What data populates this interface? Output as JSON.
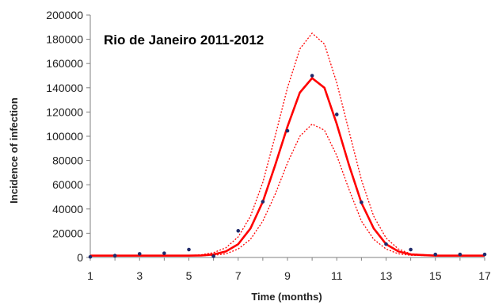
{
  "chart_data": {
    "type": "line",
    "title": "Rio de Janeiro 2011-2012",
    "xlabel": "Time (months)",
    "ylabel": "Incidence of infection",
    "xlim": [
      1,
      17
    ],
    "ylim": [
      0,
      200000
    ],
    "x_ticks": [
      1,
      3,
      5,
      7,
      9,
      11,
      13,
      15,
      17
    ],
    "y_ticks": [
      0,
      20000,
      40000,
      60000,
      80000,
      100000,
      120000,
      140000,
      160000,
      180000,
      200000
    ],
    "grid": false,
    "legend": "none",
    "colors": {
      "fit": "#ff0000",
      "bounds": "#ff0000",
      "observed": "#1f2a6b",
      "axis": "#808080"
    },
    "series": [
      {
        "role": "observed",
        "style": "scatter",
        "x": [
          1,
          2,
          3,
          4,
          5,
          6,
          7,
          8,
          9,
          10,
          11,
          12,
          13,
          14,
          15,
          16,
          17
        ],
        "y": [
          500,
          1500,
          3000,
          3500,
          6500,
          1000,
          22000,
          46000,
          104500,
          150000,
          118000,
          45500,
          11000,
          6500,
          2500,
          2500,
          2500
        ]
      },
      {
        "role": "fit",
        "style": "solid",
        "x": [
          1,
          2,
          3,
          4,
          5,
          5.5,
          6,
          6.5,
          7,
          7.5,
          8,
          8.5,
          9,
          9.5,
          10,
          10.5,
          11,
          11.5,
          12,
          12.5,
          13,
          13.5,
          14,
          15,
          16,
          17
        ],
        "y": [
          1500,
          1500,
          1500,
          1500,
          1500,
          1700,
          2500,
          5000,
          11000,
          24000,
          46000,
          76000,
          108000,
          136000,
          148000,
          140000,
          110000,
          76000,
          45000,
          24000,
          11000,
          5000,
          2500,
          1500,
          1500,
          1500
        ]
      },
      {
        "role": "upper-bound",
        "style": "dotted",
        "x": [
          1,
          2,
          3,
          4,
          5,
          5.5,
          6,
          6.5,
          7,
          7.5,
          8,
          8.5,
          9,
          9.5,
          10,
          10.5,
          11,
          11.5,
          12,
          12.5,
          13,
          13.5,
          14,
          15,
          16,
          17
        ],
        "y": [
          1500,
          1500,
          1500,
          1500,
          1600,
          2200,
          4000,
          8000,
          17000,
          34000,
          62000,
          100000,
          140000,
          172000,
          185000,
          176000,
          144000,
          104000,
          64000,
          34000,
          16000,
          7000,
          3000,
          1600,
          1500,
          1500
        ]
      },
      {
        "role": "lower-bound",
        "style": "dotted",
        "x": [
          1,
          2,
          3,
          4,
          5,
          5.5,
          6,
          6.5,
          7,
          7.5,
          8,
          8.5,
          9,
          9.5,
          10,
          10.5,
          11,
          11.5,
          12,
          12.5,
          13,
          13.5,
          14,
          15,
          16,
          17
        ],
        "y": [
          1500,
          1500,
          1500,
          1500,
          1500,
          1500,
          1800,
          3000,
          7000,
          15000,
          30000,
          52000,
          78000,
          100000,
          110000,
          105000,
          84000,
          56000,
          30000,
          15000,
          7000,
          3000,
          1800,
          1500,
          1500,
          1500
        ]
      }
    ]
  }
}
